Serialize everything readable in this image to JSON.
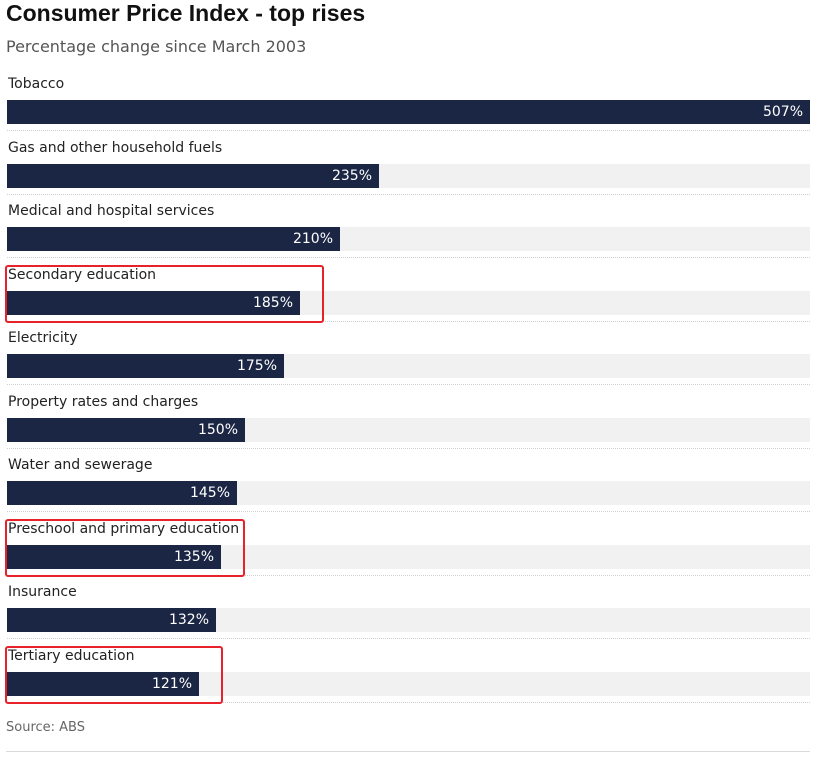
{
  "chart_data": {
    "type": "bar",
    "orientation": "horizontal",
    "title": "Consumer Price Index - top rises",
    "subtitle": "Percentage change since March 2003",
    "categories": [
      "Tobacco",
      "Gas and other household fuels",
      "Medical and hospital services",
      "Secondary education",
      "Electricity",
      "Property rates and charges",
      "Water and sewerage",
      "Preschool and primary education",
      "Insurance",
      "Tertiary education"
    ],
    "values": [
      507,
      235,
      210,
      185,
      175,
      150,
      145,
      135,
      132,
      121
    ],
    "value_labels": [
      "507%",
      "235%",
      "210%",
      "185%",
      "175%",
      "150%",
      "145%",
      "135%",
      "132%",
      "121%"
    ],
    "xlim": [
      0,
      507
    ],
    "highlighted_categories": [
      "Secondary education",
      "Preschool and primary education",
      "Tertiary education"
    ],
    "colors": {
      "bar": "#1b2645",
      "track": "#f1f1f1",
      "highlight": "#e8222a"
    }
  },
  "source": "Source: ABS"
}
